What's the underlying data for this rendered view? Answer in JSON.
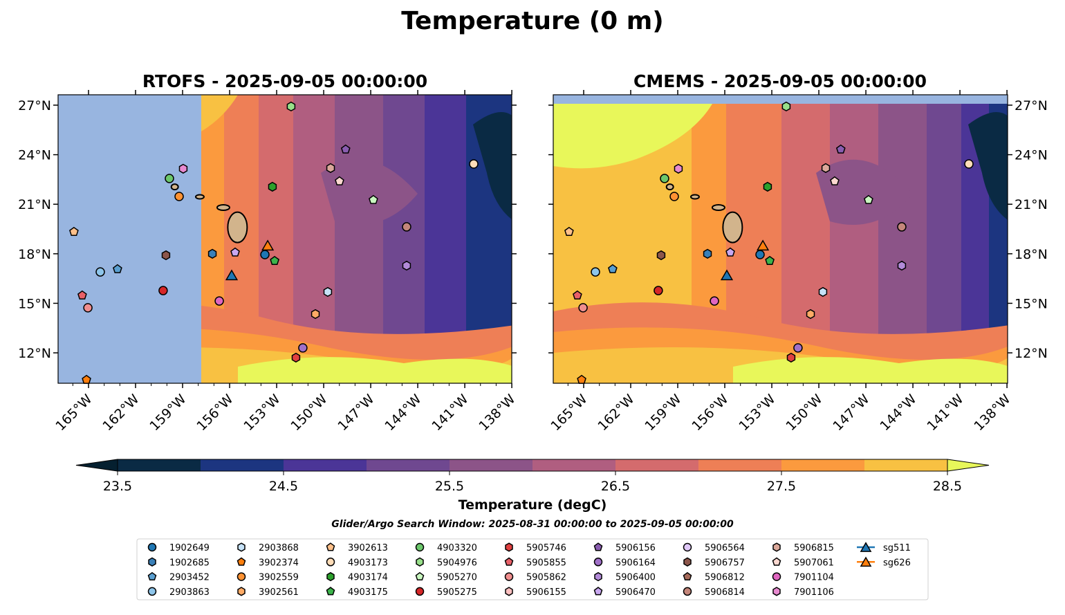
{
  "chart_data": {
    "type": "map-contour",
    "title": "Temperature (0 m)",
    "panels": [
      {
        "title": "RTOFS - 2025-09-05 00:00:00",
        "model_coverage_start_lon": -157.8
      },
      {
        "title": "CMEMS - 2025-09-05 00:00:00"
      }
    ],
    "lon_range": [
      -166.94,
      -138
    ],
    "lat_range": [
      10.16,
      27.63
    ],
    "lon_ticks": [
      -165,
      -162,
      -159,
      -156,
      -153,
      -150,
      -147,
      -144,
      -141,
      -138
    ],
    "lon_tick_labels": [
      "165°W",
      "162°W",
      "159°W",
      "156°W",
      "153°W",
      "150°W",
      "147°W",
      "144°W",
      "141°W",
      "138°W"
    ],
    "lat_ticks": [
      12,
      15,
      18,
      21,
      24,
      27
    ],
    "lat_tick_labels": [
      "12°N",
      "15°N",
      "18°N",
      "21°N",
      "24°N",
      "27°N"
    ],
    "colorbar": {
      "label": "Temperature (degC)",
      "levels": [
        23.5,
        24,
        24.5,
        25,
        25.5,
        26,
        26.5,
        27,
        27.5,
        28,
        28.5
      ],
      "colors": [
        "#0a2a44",
        "#1c3580",
        "#4b3597",
        "#6f4890",
        "#8c5488",
        "#b05e80",
        "#d46b6d",
        "#ee7f56",
        "#fb9a3e",
        "#f8c142"
      ],
      "under_color": "#052030",
      "over_color": "#e8f75a",
      "tick_labels": [
        "23.5",
        "24.5",
        "25.5",
        "26.5",
        "27.5",
        "28.5"
      ]
    },
    "subtitle": "Glider/Argo Search Window: 2025-08-31 00:00:00 to 2025-09-05 00:00:00",
    "land_color": "#d2b48c",
    "nodata_color": "#98b5e0",
    "platforms": [
      {
        "name": "1902649",
        "shape": "circle",
        "color": "#1f77b4",
        "lon": -153.75,
        "lat": 17.95
      },
      {
        "name": "1902685",
        "shape": "hexagon",
        "color": "#3a80b8",
        "lon": -157.1,
        "lat": 18.0
      },
      {
        "name": "2903452",
        "shape": "pentagon",
        "color": "#5a9fd0",
        "lon": -163.15,
        "lat": 17.07
      },
      {
        "name": "2903863",
        "shape": "circle",
        "color": "#8ec5ea",
        "lon": -164.25,
        "lat": 16.9
      },
      {
        "name": "2903868",
        "shape": "hexagon",
        "color": "#c6e2f7",
        "lon": -149.74,
        "lat": 15.69
      },
      {
        "name": "3902374",
        "shape": "pentagon",
        "color": "#ff7f0e",
        "lon": -165.13,
        "lat": 10.37
      },
      {
        "name": "3902559",
        "shape": "circle",
        "color": "#ff9233",
        "lon": -159.22,
        "lat": 21.47
      },
      {
        "name": "3902561",
        "shape": "hexagon",
        "color": "#ffab66",
        "lon": -150.53,
        "lat": 14.35
      },
      {
        "name": "3902613",
        "shape": "pentagon",
        "color": "#ffc08a",
        "lon": -165.93,
        "lat": 19.33
      },
      {
        "name": "4903173",
        "shape": "circle",
        "color": "#ffddb8",
        "lon": -140.43,
        "lat": 23.44
      },
      {
        "name": "4903174",
        "shape": "hexagon",
        "color": "#2ca02c",
        "lon": -153.27,
        "lat": 22.06
      },
      {
        "name": "4903175",
        "shape": "pentagon",
        "color": "#3cb44b",
        "lon": -153.13,
        "lat": 17.57
      },
      {
        "name": "4903320",
        "shape": "circle",
        "color": "#6cc86c",
        "lon": -159.84,
        "lat": 22.56
      },
      {
        "name": "5904976",
        "shape": "hexagon",
        "color": "#98df8a",
        "lon": -152.08,
        "lat": 26.92
      },
      {
        "name": "5905270",
        "shape": "pentagon",
        "color": "#c9f7c0",
        "lon": -146.83,
        "lat": 21.26
      },
      {
        "name": "5905275",
        "shape": "circle",
        "color": "#d62728",
        "lon": -160.24,
        "lat": 15.77
      },
      {
        "name": "5905746",
        "shape": "hexagon",
        "color": "#e04040",
        "lon": -151.77,
        "lat": 11.71
      },
      {
        "name": "5905855",
        "shape": "pentagon",
        "color": "#e86068",
        "lon": -165.4,
        "lat": 15.48
      },
      {
        "name": "5905862",
        "shape": "circle",
        "color": "#f08e8e",
        "lon": -165.04,
        "lat": 14.73
      },
      {
        "name": "5906155",
        "shape": "hexagon",
        "color": "#ffc0c0"
      },
      {
        "name": "5906156",
        "shape": "pentagon",
        "color": "#8a5db0",
        "lon": -148.6,
        "lat": 24.32
      },
      {
        "name": "5906164",
        "shape": "circle",
        "color": "#a070c8",
        "lon": -151.33,
        "lat": 12.3
      },
      {
        "name": "5906400",
        "shape": "hexagon",
        "color": "#b28ad8",
        "lon": -144.71,
        "lat": 17.28
      },
      {
        "name": "5906470",
        "shape": "pentagon",
        "color": "#c9a8f0",
        "lon": -155.65,
        "lat": 18.08
      },
      {
        "name": "5906564",
        "shape": "circle",
        "color": "#e0c8f8"
      },
      {
        "name": "5906757",
        "shape": "hexagon",
        "color": "#8c564b",
        "lon": -160.06,
        "lat": 17.91
      },
      {
        "name": "5906812",
        "shape": "pentagon",
        "color": "#a66a5a"
      },
      {
        "name": "5906814",
        "shape": "circle",
        "color": "#c4867a",
        "lon": -144.71,
        "lat": 19.63
      },
      {
        "name": "5906815",
        "shape": "hexagon",
        "color": "#dba89a",
        "lon": -149.56,
        "lat": 23.19
      },
      {
        "name": "5907061",
        "shape": "pentagon",
        "color": "#fcd8d0",
        "lon": -148.99,
        "lat": 22.39
      },
      {
        "name": "7901104",
        "shape": "circle",
        "color": "#e066c0",
        "lon": -156.66,
        "lat": 15.14
      },
      {
        "name": "7901106",
        "shape": "hexagon",
        "color": "#e88ad0",
        "lon": -158.96,
        "lat": 23.15
      },
      {
        "name": "sg511",
        "shape": "triangle",
        "color": "#1f77b4",
        "lon": -155.87,
        "lat": 16.7
      },
      {
        "name": "sg626",
        "shape": "triangle",
        "color": "#ff7f0e",
        "lon": -153.57,
        "lat": 18.5
      }
    ]
  }
}
